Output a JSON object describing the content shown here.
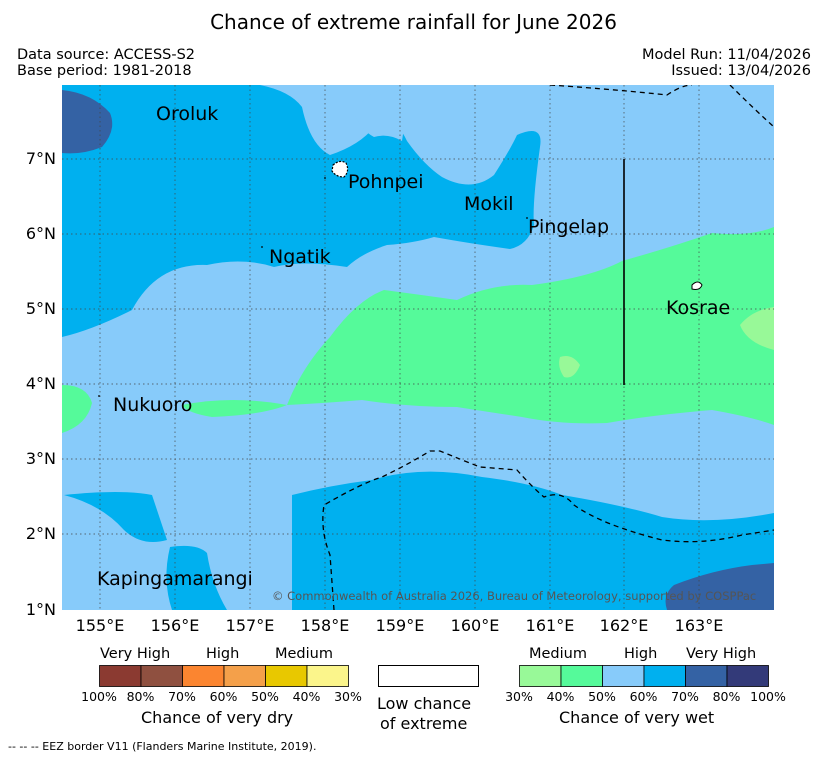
{
  "title": "Chance of extreme rainfall for June 2026",
  "header": {
    "data_source": "Data source: ACCESS-S2",
    "base_period": "Base period: 1981-2018",
    "model_run": "Model Run: 11/04/2026",
    "issued": "Issued: 13/04/2026"
  },
  "map": {
    "lon_ticks": [
      "155°E",
      "156°E",
      "157°E",
      "158°E",
      "159°E",
      "160°E",
      "161°E",
      "162°E",
      "163°E"
    ],
    "lat_ticks": [
      "7°N",
      "6°N",
      "5°N",
      "4°N",
      "3°N",
      "2°N",
      "1°N"
    ],
    "places": [
      "Oroluk",
      "Pohnpei",
      "Mokil",
      "Pingelap",
      "Ngatik",
      "Kosrae",
      "Nukuoro",
      "Kapingamarangi"
    ],
    "copyright": "© Commonwealth of Australia 2026, Bureau of Meteorology, supported by COSPPac",
    "colors": {
      "wet_30_40": "#98f998",
      "wet_40_50": "#55fa9a",
      "wet_50_60": "#87cbfa",
      "wet_60_70": "#00b0ef",
      "wet_70_80": "#3462a4",
      "wet_80_100": "#333a79"
    }
  },
  "legend": {
    "dry": {
      "categories": [
        "Very High",
        "High",
        "Medium"
      ],
      "percents": [
        "100%",
        "80%",
        "70%",
        "60%",
        "50%",
        "40%",
        "30%"
      ],
      "caption": "Chance of very dry",
      "colors": [
        "#8b3a31",
        "#8f5040",
        "#fb8530",
        "#f4a04a",
        "#e8c800",
        "#fbf58b"
      ]
    },
    "low": {
      "caption_line1": "Low chance",
      "caption_line2": "of extreme"
    },
    "wet": {
      "categories": [
        "Medium",
        "High",
        "Very High"
      ],
      "percents": [
        "30%",
        "40%",
        "50%",
        "60%",
        "70%",
        "80%",
        "100%"
      ],
      "caption": "Chance of very wet",
      "colors": [
        "#98f998",
        "#55fa9a",
        "#87cbfa",
        "#00b0ef",
        "#3462a4",
        "#333a79"
      ]
    }
  },
  "footer": "--  --  -- EEZ border V11 (Flanders Marine Institute, 2019)."
}
